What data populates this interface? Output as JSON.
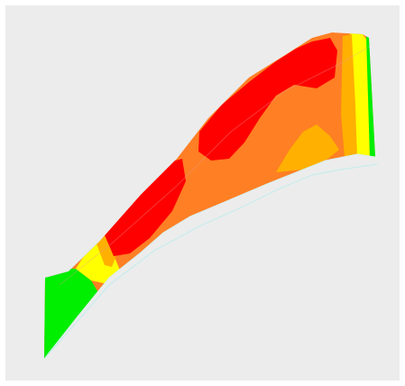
{
  "viewer": {
    "background": "#ececec",
    "mesh_outline_color": "#c8ecec",
    "palette": {
      "red": "#ff0000",
      "orange": "#ff6a1a",
      "dark_orange": "#ff7f24",
      "amber": "#ffb000",
      "yellow": "#ffff00",
      "green": "#00ee00",
      "light_green": "#7cff00"
    }
  }
}
